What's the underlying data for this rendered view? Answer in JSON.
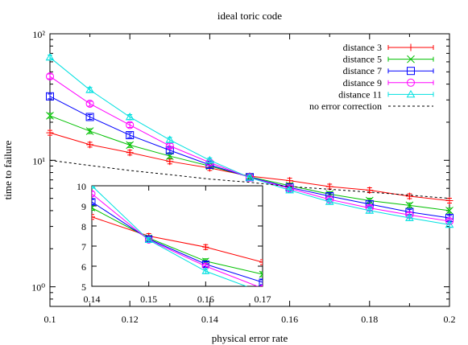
{
  "chart_data": [
    {
      "type": "line",
      "title": "ideal toric code",
      "xlabel": "physical error rate",
      "ylabel": "time to failure",
      "xlim": [
        0.1,
        0.2
      ],
      "ylim": [
        0.7,
        100
      ],
      "yscale": "log",
      "x_ticks": [
        0.1,
        0.12,
        0.14,
        0.16,
        0.18,
        0.2
      ],
      "x_tick_labels": [
        "0.1",
        "0.12",
        "0.14",
        "0.16",
        "0.18",
        "0.2"
      ],
      "y_ticks": [
        1,
        10,
        100
      ],
      "y_tick_labels": [
        "10⁰",
        "10¹",
        "10²"
      ],
      "legend_position": "top-right",
      "x": [
        0.1,
        0.11,
        0.12,
        0.13,
        0.14,
        0.15,
        0.16,
        0.17,
        0.18,
        0.19,
        0.2
      ],
      "series": [
        {
          "name": "distance 3",
          "color": "#ff0000",
          "marker": "plus",
          "values": [
            16.5,
            13.3,
            11.5,
            9.8,
            8.7,
            7.5,
            6.9,
            6.2,
            5.8,
            5.2,
            4.8
          ]
        },
        {
          "name": "distance 5",
          "color": "#00c000",
          "marker": "cross",
          "values": [
            22.5,
            17.0,
            13.2,
            10.8,
            9.0,
            7.4,
            6.3,
            5.4,
            4.8,
            4.4,
            4.0
          ]
        },
        {
          "name": "distance 7",
          "color": "#0000ff",
          "marker": "square",
          "values": [
            32.0,
            22.0,
            15.8,
            12.0,
            9.2,
            7.35,
            6.1,
            5.2,
            4.5,
            3.9,
            3.5
          ]
        },
        {
          "name": "distance 9",
          "color": "#ff00ff",
          "marker": "circle",
          "values": [
            46.0,
            28.0,
            19.0,
            13.0,
            9.6,
            7.3,
            6.0,
            4.9,
            4.2,
            3.7,
            3.3
          ]
        },
        {
          "name": "distance 11",
          "color": "#00e0e0",
          "marker": "triangle",
          "values": [
            65.0,
            36.0,
            22.0,
            14.5,
            10.0,
            7.3,
            5.8,
            4.7,
            4.0,
            3.5,
            3.1
          ]
        },
        {
          "name": "no error correction",
          "color": "#000000",
          "marker": "none",
          "dashed": true,
          "values": [
            10.0,
            9.1,
            8.3,
            7.7,
            7.1,
            6.7,
            6.2,
            5.9,
            5.6,
            5.3,
            5.0
          ]
        }
      ]
    },
    {
      "type": "line",
      "inset": true,
      "xlim": [
        0.14,
        0.17
      ],
      "ylim": [
        5,
        10
      ],
      "x_ticks": [
        0.14,
        0.15,
        0.16,
        0.17
      ],
      "x_tick_labels": [
        "0.14",
        "0.15",
        "0.16",
        "0.17"
      ],
      "y_ticks": [
        5,
        6,
        7,
        8,
        9,
        10
      ],
      "y_tick_labels": [
        "5",
        "6",
        "7",
        "8",
        "9",
        "10"
      ],
      "x": [
        0.14,
        0.15,
        0.16,
        0.17
      ],
      "series": [
        {
          "color": "#ff0000",
          "marker": "plus",
          "values": [
            8.45,
            7.5,
            6.95,
            6.2
          ]
        },
        {
          "color": "#00c000",
          "marker": "cross",
          "values": [
            8.9,
            7.4,
            6.25,
            5.6
          ]
        },
        {
          "color": "#0000ff",
          "marker": "square",
          "values": [
            9.2,
            7.35,
            6.1,
            5.2
          ]
        },
        {
          "color": "#ff00ff",
          "marker": "circle",
          "values": [
            9.6,
            7.3,
            6.0,
            4.9
          ]
        },
        {
          "color": "#00e0e0",
          "marker": "triangle",
          "values": [
            10.0,
            7.3,
            5.75,
            4.7
          ]
        }
      ]
    }
  ]
}
